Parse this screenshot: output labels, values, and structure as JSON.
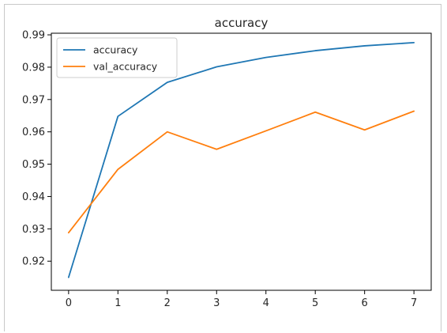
{
  "chart_data": {
    "type": "line",
    "title": "accuracy",
    "xlabel": "",
    "ylabel": "",
    "x": [
      0,
      1,
      2,
      3,
      4,
      5,
      6,
      7
    ],
    "xlim": [
      -0.35,
      7.35
    ],
    "ylim": [
      0.911,
      0.9905
    ],
    "xticks": [
      "0",
      "1",
      "2",
      "3",
      "4",
      "5",
      "6",
      "7"
    ],
    "yticks": [
      "0.92",
      "0.93",
      "0.94",
      "0.95",
      "0.96",
      "0.97",
      "0.98",
      "0.99"
    ],
    "grid": false,
    "legend_position": "upper-left",
    "series": [
      {
        "name": "accuracy",
        "color": "#1f77b4",
        "values": [
          0.915,
          0.9648,
          0.9753,
          0.9801,
          0.983,
          0.9851,
          0.9866,
          0.9876
        ]
      },
      {
        "name": "val_accuracy",
        "color": "#ff7f0e",
        "values": [
          0.9288,
          0.9484,
          0.96,
          0.9546,
          0.9603,
          0.9661,
          0.9606,
          0.9664
        ]
      }
    ]
  }
}
